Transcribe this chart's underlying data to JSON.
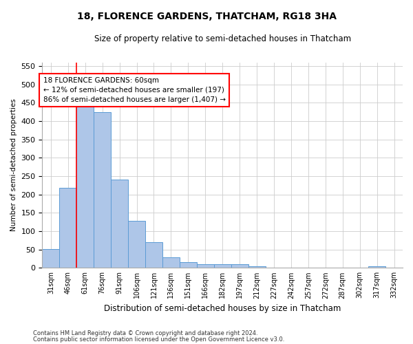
{
  "title": "18, FLORENCE GARDENS, THATCHAM, RG18 3HA",
  "subtitle": "Size of property relative to semi-detached houses in Thatcham",
  "xlabel": "Distribution of semi-detached houses by size in Thatcham",
  "ylabel": "Number of semi-detached properties",
  "categories": [
    "31sqm",
    "46sqm",
    "61sqm",
    "76sqm",
    "91sqm",
    "106sqm",
    "121sqm",
    "136sqm",
    "151sqm",
    "166sqm",
    "182sqm",
    "197sqm",
    "212sqm",
    "227sqm",
    "242sqm",
    "257sqm",
    "272sqm",
    "287sqm",
    "302sqm",
    "317sqm",
    "332sqm"
  ],
  "values": [
    52,
    218,
    460,
    425,
    240,
    128,
    70,
    28,
    16,
    10,
    10,
    10,
    5,
    0,
    0,
    0,
    0,
    0,
    0,
    5,
    0
  ],
  "bar_color": "#aec6e8",
  "bar_edge_color": "#5b9bd5",
  "annotation_text": "18 FLORENCE GARDENS: 60sqm\n← 12% of semi-detached houses are smaller (197)\n86% of semi-detached houses are larger (1,407) →",
  "ylim": [
    0,
    560
  ],
  "yticks": [
    0,
    50,
    100,
    150,
    200,
    250,
    300,
    350,
    400,
    450,
    500,
    550
  ],
  "footer1": "Contains HM Land Registry data © Crown copyright and database right 2024.",
  "footer2": "Contains public sector information licensed under the Open Government Licence v3.0.",
  "bg_color": "#ffffff",
  "grid_color": "#cccccc",
  "red_line_x": 2.0
}
